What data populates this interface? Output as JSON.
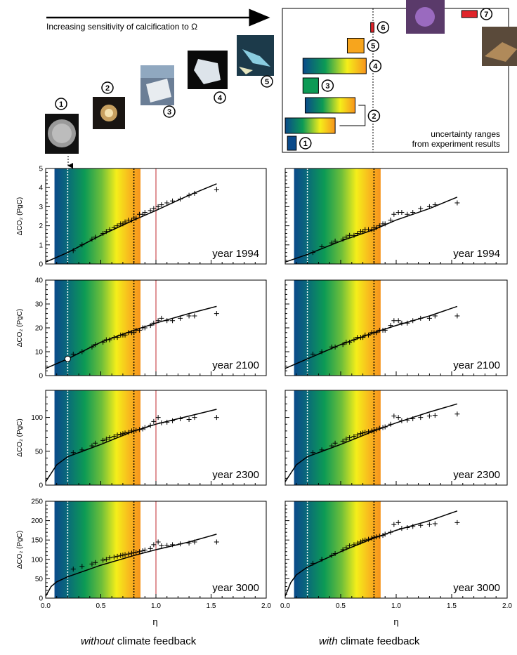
{
  "header": {
    "arrow_label": "Increasing sensitivity of calcification to Ω",
    "badges_left": [
      "1",
      "2",
      "3",
      "4",
      "5"
    ],
    "uncertainty_text_line1": "uncertainty ranges",
    "uncertainty_text_line2": "from experiment results",
    "badges_right": [
      "1",
      "2",
      "3",
      "4",
      "5",
      "6",
      "7"
    ]
  },
  "ranges": [
    {
      "badge": "1",
      "lo": 0.02,
      "hi": 0.1
    },
    {
      "badge": "2a",
      "lo": 0.0,
      "hi": 0.45
    },
    {
      "badge": "2b",
      "lo": 0.18,
      "hi": 0.63
    },
    {
      "badge": "3",
      "lo": 0.16,
      "hi": 0.3
    },
    {
      "badge": "4",
      "lo": 0.16,
      "hi": 0.73
    },
    {
      "badge": "5",
      "lo": 0.56,
      "hi": 0.71
    },
    {
      "badge": "6",
      "lo": 0.77,
      "hi": 0.8
    },
    {
      "badge": "7",
      "lo": 1.59,
      "hi": 1.73
    }
  ],
  "captions": {
    "left_italic": "without",
    "left_rest": " climate feedback",
    "right_italic": "with",
    "right_rest": " climate feedback"
  },
  "chart_data": [
    {
      "type": "line",
      "panel": "year 1994, without climate feedback",
      "ylabel": "ΔCO₂ (PgC)",
      "xlabel": "η",
      "xlim": [
        0,
        2.0
      ],
      "ylim": [
        0,
        5
      ],
      "yticks": [
        "0",
        "1",
        "2",
        "3",
        "4",
        "5"
      ],
      "curve": {
        "x": [
          0,
          0.2,
          0.5,
          0.8,
          1.0,
          1.3,
          1.55
        ],
        "y": [
          0.1,
          0.6,
          1.5,
          2.3,
          2.8,
          3.6,
          4.2
        ]
      },
      "scatter": {
        "x": [
          0.25,
          0.33,
          0.42,
          0.45,
          0.52,
          0.55,
          0.58,
          0.62,
          0.65,
          0.68,
          0.7,
          0.72,
          0.75,
          0.78,
          0.8,
          0.82,
          0.85,
          0.88,
          0.9,
          0.95,
          0.98,
          1.02,
          1.05,
          1.1,
          1.15,
          1.22,
          1.3,
          1.35,
          1.55
        ],
        "y": [
          0.7,
          1.0,
          1.3,
          1.4,
          1.6,
          1.7,
          1.8,
          1.9,
          2.0,
          2.1,
          2.1,
          2.2,
          2.3,
          2.3,
          2.4,
          2.4,
          2.6,
          2.6,
          2.7,
          2.8,
          2.9,
          3.0,
          3.1,
          3.2,
          3.3,
          3.4,
          3.6,
          3.7,
          3.9
        ]
      }
    },
    {
      "type": "line",
      "panel": "year 1994, with climate feedback",
      "ylabel": "",
      "xlabel": "η",
      "xlim": [
        0,
        2.0
      ],
      "ylim": [
        0,
        5
      ],
      "curve": {
        "x": [
          0,
          0.2,
          0.5,
          0.8,
          1.0,
          1.3,
          1.55
        ],
        "y": [
          0.1,
          0.5,
          1.2,
          1.8,
          2.3,
          2.9,
          3.5
        ]
      },
      "scatter": {
        "x": [
          0.25,
          0.33,
          0.42,
          0.45,
          0.52,
          0.55,
          0.58,
          0.62,
          0.65,
          0.68,
          0.7,
          0.72,
          0.75,
          0.78,
          0.8,
          0.82,
          0.85,
          0.88,
          0.9,
          0.95,
          0.98,
          1.02,
          1.05,
          1.1,
          1.15,
          1.22,
          1.3,
          1.35,
          1.55
        ],
        "y": [
          0.6,
          0.9,
          1.1,
          1.2,
          1.3,
          1.4,
          1.5,
          1.5,
          1.6,
          1.7,
          1.7,
          1.8,
          1.8,
          1.8,
          1.9,
          1.9,
          2.0,
          2.1,
          2.1,
          2.3,
          2.6,
          2.7,
          2.7,
          2.6,
          2.7,
          2.9,
          3.0,
          3.1,
          3.2
        ]
      }
    },
    {
      "type": "line",
      "panel": "year 2100, without climate feedback",
      "ylabel": "ΔCO₂ (PgC)",
      "xlabel": "η",
      "xlim": [
        0,
        2.0
      ],
      "ylim": [
        0,
        40
      ],
      "yticks": [
        "0",
        "10",
        "20",
        "30",
        "40"
      ],
      "highlight_point": {
        "x": 0.2,
        "y": 7
      },
      "curve": {
        "x": [
          0,
          0.2,
          0.5,
          0.8,
          1.0,
          1.3,
          1.55
        ],
        "y": [
          3,
          7,
          14,
          19,
          22,
          26,
          29
        ]
      },
      "scatter": {
        "x": [
          0.25,
          0.33,
          0.42,
          0.45,
          0.52,
          0.55,
          0.58,
          0.62,
          0.65,
          0.68,
          0.7,
          0.72,
          0.75,
          0.78,
          0.8,
          0.82,
          0.85,
          0.88,
          0.9,
          0.95,
          0.98,
          1.02,
          1.05,
          1.1,
          1.15,
          1.22,
          1.3,
          1.35,
          1.55
        ],
        "y": [
          9,
          10,
          12,
          13,
          14,
          15,
          15,
          16,
          16,
          17,
          17,
          17,
          18,
          18,
          18,
          19,
          19,
          20,
          20,
          21,
          22,
          23,
          24,
          23,
          23,
          24,
          25,
          25,
          26
        ]
      }
    },
    {
      "type": "line",
      "panel": "year 2100, with climate feedback",
      "ylabel": "",
      "xlabel": "η",
      "xlim": [
        0,
        2.0
      ],
      "ylim": [
        0,
        40
      ],
      "curve": {
        "x": [
          0,
          0.2,
          0.5,
          0.8,
          1.0,
          1.3,
          1.55
        ],
        "y": [
          3,
          7,
          13,
          18,
          21,
          25,
          29
        ]
      },
      "scatter": {
        "x": [
          0.25,
          0.33,
          0.42,
          0.45,
          0.52,
          0.55,
          0.58,
          0.62,
          0.65,
          0.68,
          0.7,
          0.72,
          0.75,
          0.78,
          0.8,
          0.82,
          0.85,
          0.88,
          0.9,
          0.95,
          0.98,
          1.02,
          1.05,
          1.1,
          1.15,
          1.22,
          1.3,
          1.35,
          1.55
        ],
        "y": [
          9,
          10,
          12,
          12,
          13,
          14,
          14,
          15,
          16,
          16,
          16,
          17,
          17,
          18,
          18,
          18,
          19,
          19,
          19,
          21,
          23,
          23,
          22,
          22,
          23,
          24,
          24,
          25,
          25
        ]
      }
    },
    {
      "type": "line",
      "panel": "year 2300, without climate feedback",
      "ylabel": "ΔCO₂ (PgC)",
      "xlabel": "η",
      "xlim": [
        0,
        2.0
      ],
      "ylim": [
        0,
        140
      ],
      "yticks": [
        "0",
        "50",
        "100"
      ],
      "curve": {
        "x": [
          0,
          0.1,
          0.2,
          0.5,
          0.8,
          1.0,
          1.3,
          1.55
        ],
        "y": [
          5,
          30,
          42,
          60,
          80,
          90,
          102,
          112
        ]
      },
      "scatter": {
        "x": [
          0.25,
          0.33,
          0.42,
          0.45,
          0.52,
          0.55,
          0.58,
          0.62,
          0.65,
          0.68,
          0.7,
          0.72,
          0.75,
          0.78,
          0.8,
          0.82,
          0.85,
          0.88,
          0.9,
          0.95,
          0.98,
          1.02,
          1.05,
          1.1,
          1.15,
          1.22,
          1.3,
          1.35,
          1.55
        ],
        "y": [
          48,
          52,
          58,
          62,
          66,
          68,
          70,
          72,
          74,
          75,
          76,
          77,
          78,
          80,
          80,
          81,
          82,
          83,
          85,
          88,
          94,
          100,
          92,
          93,
          95,
          98,
          97,
          100,
          100
        ]
      }
    },
    {
      "type": "line",
      "panel": "year 2300, with climate feedback",
      "ylabel": "",
      "xlabel": "η",
      "xlim": [
        0,
        2.0
      ],
      "ylim": [
        0,
        140
      ],
      "curve": {
        "x": [
          0,
          0.1,
          0.2,
          0.5,
          0.8,
          1.0,
          1.3,
          1.55
        ],
        "y": [
          5,
          30,
          42,
          60,
          80,
          92,
          108,
          120
        ]
      },
      "scatter": {
        "x": [
          0.25,
          0.33,
          0.42,
          0.45,
          0.52,
          0.55,
          0.58,
          0.62,
          0.65,
          0.68,
          0.7,
          0.72,
          0.75,
          0.78,
          0.8,
          0.82,
          0.85,
          0.88,
          0.9,
          0.95,
          0.98,
          1.02,
          1.05,
          1.1,
          1.15,
          1.22,
          1.3,
          1.35,
          1.55
        ],
        "y": [
          48,
          52,
          58,
          62,
          65,
          68,
          70,
          72,
          74,
          76,
          77,
          78,
          79,
          80,
          81,
          82,
          84,
          85,
          86,
          90,
          102,
          100,
          95,
          96,
          98,
          100,
          102,
          103,
          105
        ]
      }
    },
    {
      "type": "line",
      "panel": "year 3000, without climate feedback",
      "ylabel": "ΔCO₂ (PgC)",
      "xlabel": "η",
      "xlim": [
        0,
        2.0
      ],
      "ylim": [
        0,
        250
      ],
      "yticks": [
        "0",
        "50",
        "100",
        "150",
        "200",
        "250"
      ],
      "xticks": [
        "0.0",
        "0.5",
        "1.0",
        "1.5",
        "2.0"
      ],
      "curve": {
        "x": [
          0,
          0.05,
          0.1,
          0.2,
          0.5,
          0.8,
          1.0,
          1.3,
          1.55
        ],
        "y": [
          5,
          30,
          42,
          55,
          85,
          110,
          125,
          145,
          165
        ]
      },
      "scatter": {
        "x": [
          0.25,
          0.33,
          0.42,
          0.45,
          0.52,
          0.55,
          0.58,
          0.62,
          0.65,
          0.68,
          0.7,
          0.72,
          0.75,
          0.78,
          0.8,
          0.82,
          0.85,
          0.88,
          0.9,
          0.95,
          0.98,
          1.02,
          1.05,
          1.1,
          1.15,
          1.22,
          1.3,
          1.35,
          1.55
        ],
        "y": [
          75,
          82,
          88,
          92,
          98,
          100,
          104,
          106,
          108,
          110,
          111,
          112,
          114,
          116,
          117,
          118,
          120,
          122,
          124,
          128,
          138,
          145,
          135,
          136,
          138,
          140,
          142,
          145,
          145
        ]
      }
    },
    {
      "type": "line",
      "panel": "year 3000, with climate feedback",
      "ylabel": "",
      "xlabel": "η",
      "xlim": [
        0,
        2.0
      ],
      "ylim": [
        0,
        250
      ],
      "xticks": [
        "0.0",
        "0.5",
        "1.0",
        "1.5",
        "2.0"
      ],
      "curve": {
        "x": [
          0,
          0.05,
          0.1,
          0.2,
          0.5,
          0.8,
          1.0,
          1.3,
          1.55
        ],
        "y": [
          5,
          40,
          60,
          80,
          120,
          155,
          175,
          200,
          225
        ]
      },
      "scatter": {
        "x": [
          0.25,
          0.33,
          0.42,
          0.45,
          0.52,
          0.55,
          0.58,
          0.62,
          0.65,
          0.68,
          0.7,
          0.72,
          0.75,
          0.78,
          0.8,
          0.82,
          0.85,
          0.88,
          0.9,
          0.95,
          0.98,
          1.02,
          1.05,
          1.1,
          1.15,
          1.22,
          1.3,
          1.35,
          1.55
        ],
        "y": [
          90,
          100,
          110,
          115,
          125,
          130,
          135,
          138,
          142,
          145,
          148,
          150,
          152,
          155,
          157,
          158,
          160,
          162,
          165,
          170,
          190,
          195,
          180,
          182,
          185,
          188,
          190,
          192,
          195
        ]
      }
    }
  ],
  "year_labels": [
    "year 1994",
    "year 1994",
    "year 2100",
    "year 2100",
    "year 2300",
    "year 2300",
    "year 3000",
    "year 3000"
  ]
}
